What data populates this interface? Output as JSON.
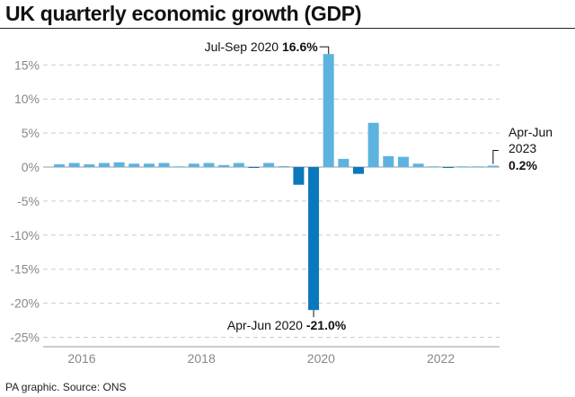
{
  "title": "UK quarterly economic growth (GDP)",
  "footer": "PA graphic. Source: ONS",
  "colors": {
    "positive": "#5cb3e0",
    "negative": "#0b78bd",
    "grid": "#cccccc"
  },
  "chart_data": {
    "type": "bar",
    "title": "UK quarterly economic growth (GDP)",
    "xlabel": "",
    "ylabel": "",
    "ylim": [
      -25,
      17
    ],
    "yticks": [
      "15%",
      "10%",
      "5%",
      "0%",
      "-5%",
      "-10%",
      "-15%",
      "-20%",
      "-25%"
    ],
    "ytick_values": [
      15,
      10,
      5,
      0,
      -5,
      -10,
      -15,
      -20,
      -25
    ],
    "xticks": [
      "2016",
      "2018",
      "2020",
      "2022"
    ],
    "grid": true,
    "categories": [
      "2016 Q1",
      "2016 Q2",
      "2016 Q3",
      "2016 Q4",
      "2017 Q1",
      "2017 Q2",
      "2017 Q3",
      "2017 Q4",
      "2018 Q1",
      "2018 Q2",
      "2018 Q3",
      "2018 Q4",
      "2019 Q1",
      "2019 Q2",
      "2019 Q3",
      "2019 Q4",
      "2020 Q1",
      "2020 Q2",
      "2020 Q3",
      "2020 Q4",
      "2021 Q1",
      "2021 Q2",
      "2021 Q3",
      "2021 Q4",
      "2022 Q1",
      "2022 Q2",
      "2022 Q3",
      "2022 Q4",
      "2023 Q1",
      "2023 Q2"
    ],
    "values": [
      0.4,
      0.6,
      0.4,
      0.6,
      0.7,
      0.5,
      0.5,
      0.6,
      0.1,
      0.5,
      0.6,
      0.3,
      0.6,
      -0.1,
      0.6,
      0.0,
      -2.6,
      -21.0,
      16.6,
      1.2,
      -1.0,
      6.5,
      1.6,
      1.5,
      0.5,
      0.1,
      -0.1,
      0.1,
      0.1,
      0.2
    ],
    "annotations": [
      {
        "label": "Jul-Sep 2020",
        "value": "16.6%",
        "category": "2020 Q3"
      },
      {
        "label": "Apr-Jun 2020",
        "value": "-21.0%",
        "category": "2020 Q2"
      },
      {
        "label": "Apr-Jun",
        "label2": "2023",
        "value": "0.2%",
        "category": "2023 Q2"
      }
    ]
  }
}
